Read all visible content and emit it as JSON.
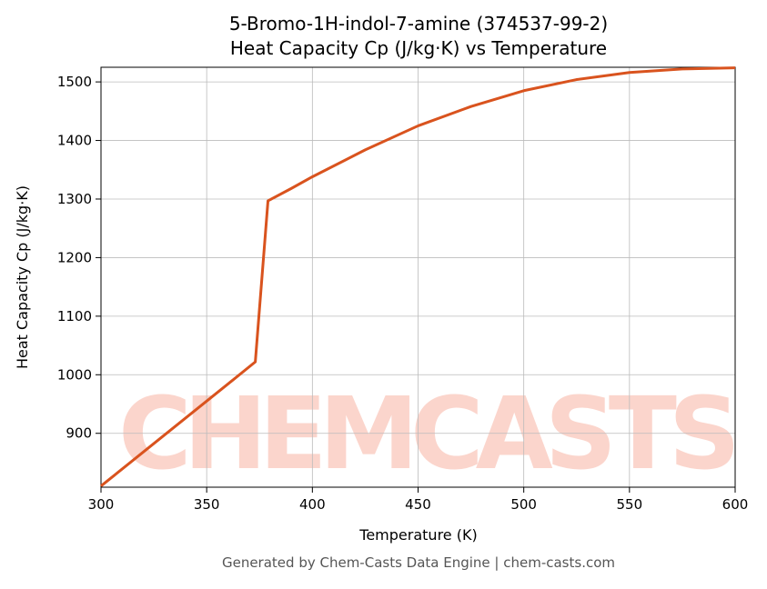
{
  "chart_data": {
    "type": "line",
    "title": "5-Bromo-1H-indol-7-amine (374537-99-2)",
    "subtitle": "Heat Capacity Cp (J/kg·K) vs Temperature",
    "x_label": "Temperature (K)",
    "y_label": "Heat Capacity Cp (J/kg·K)",
    "watermark": "CHEMCASTS",
    "footer": "Generated by Chem-Casts Data Engine | chem-casts.com",
    "x": [
      300,
      320,
      340,
      360,
      373,
      379,
      390,
      400,
      425,
      450,
      475,
      500,
      525,
      550,
      575,
      600
    ],
    "series": [
      {
        "name": "Cp",
        "color": "#d9531e",
        "values": [
          810,
          868,
          926,
          984,
          1022,
          1297,
          1318,
          1338,
          1384,
          1425,
          1458,
          1485,
          1504,
          1516,
          1522,
          1524
        ]
      }
    ],
    "xlim": [
      300,
      600
    ],
    "xticks": [
      300,
      350,
      400,
      450,
      500,
      550,
      600
    ],
    "ylim": [
      808,
      1525
    ],
    "yticks": [
      900,
      1000,
      1100,
      1200,
      1300,
      1400,
      1500
    ],
    "grid": true
  }
}
